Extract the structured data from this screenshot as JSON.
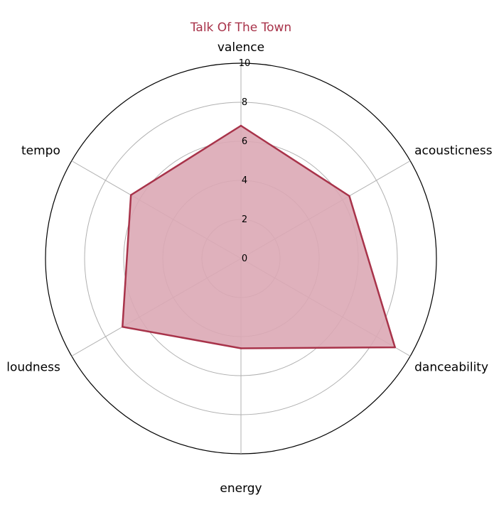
{
  "chart_data": {
    "type": "radar",
    "title": "Talk Of The Town",
    "axes": [
      "valence",
      "acousticness",
      "danceability",
      "energy",
      "loudness",
      "tempo"
    ],
    "series": [
      {
        "values": [
          6.8,
          6.4,
          9.1,
          4.6,
          7.0,
          6.5
        ]
      }
    ],
    "rlim": [
      0,
      10
    ],
    "ticks": [
      0,
      2,
      4,
      6,
      8,
      10
    ],
    "colors": {
      "title": "#a8334a",
      "line": "#a8334a",
      "fill": "#dba9b5",
      "grid": "#b0b0b0",
      "outer": "#000000"
    }
  }
}
